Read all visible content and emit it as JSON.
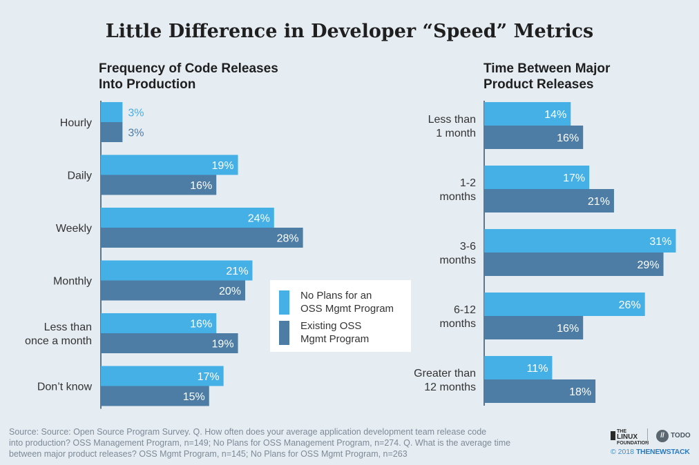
{
  "title": "Little Difference in Developer “Speed” Metrics",
  "colors": {
    "series_a": "#45b0e5",
    "series_b": "#4d7ca4",
    "background": "#e5ecf2"
  },
  "legend": {
    "items": [
      {
        "line1": "No Plans for an",
        "line2": "OSS Mgmt Program"
      },
      {
        "line1": "Existing OSS",
        "line2": "Mgmt Program"
      }
    ]
  },
  "chart_data": [
    {
      "type": "bar",
      "orientation": "horizontal",
      "title_lines": [
        "Frequency of Code Releases",
        "Into Production"
      ],
      "categories": [
        [
          "Hourly"
        ],
        [
          "Daily"
        ],
        [
          "Weekly"
        ],
        [
          "Monthly"
        ],
        [
          "Less than",
          "once a month"
        ],
        [
          "Don’t know"
        ]
      ],
      "series": [
        {
          "name": "No Plans for an OSS Mgmt Program",
          "values": [
            3,
            19,
            24,
            21,
            16,
            17
          ],
          "labels": [
            "3%",
            "19%",
            "24%",
            "21%",
            "16%",
            "17%"
          ]
        },
        {
          "name": "Existing OSS Mgmt Program",
          "values": [
            3,
            16,
            28,
            20,
            19,
            15
          ],
          "labels": [
            "3%",
            "16%",
            "28%",
            "20%",
            "19%",
            "15%"
          ]
        }
      ],
      "xlim": [
        0,
        28
      ],
      "grid": false,
      "legend": "right"
    },
    {
      "type": "bar",
      "orientation": "horizontal",
      "title_lines": [
        "Time Between Major",
        "Product Releases"
      ],
      "categories": [
        [
          "Less than",
          "1 month"
        ],
        [
          "1-2",
          "months"
        ],
        [
          "3-6",
          "months"
        ],
        [
          "6-12",
          "months"
        ],
        [
          "Greater than",
          "12 months"
        ]
      ],
      "series": [
        {
          "name": "No Plans for an OSS Mgmt Program",
          "values": [
            14,
            17,
            31,
            26,
            11
          ],
          "labels": [
            "14%",
            "17%",
            "31%",
            "26%",
            "11%"
          ]
        },
        {
          "name": "Existing OSS Mgmt Program",
          "values": [
            16,
            21,
            29,
            16,
            18
          ],
          "labels": [
            "16%",
            "21%",
            "29%",
            "16%",
            "18%"
          ]
        }
      ],
      "xlim": [
        0,
        31
      ],
      "grid": false
    }
  ],
  "source": {
    "lines": [
      "Source: Source: Open Source Program Survey. Q. How often does your average application development team release code",
      "into production? OSS Management Program, n=149; No Plans for OSS Management Program, n=274. Q. What is the average time",
      "between major product releases? OSS Mgmt Program, n=145; No Plans for OSS Mgmt Program, n=263"
    ]
  },
  "footer": {
    "lf_small_top": "THE",
    "lf_big": "LINUX",
    "lf_small_bottom": "FOUNDATION",
    "todo_mark": "//",
    "todo_text": "TODO",
    "copyright_prefix": "© 2018",
    "copyright_brand": "THENEWSTACK"
  },
  "icons": [
    "linux-foundation-logo-icon",
    "todo-group-logo-icon",
    "the-new-stack-logo-icon"
  ]
}
